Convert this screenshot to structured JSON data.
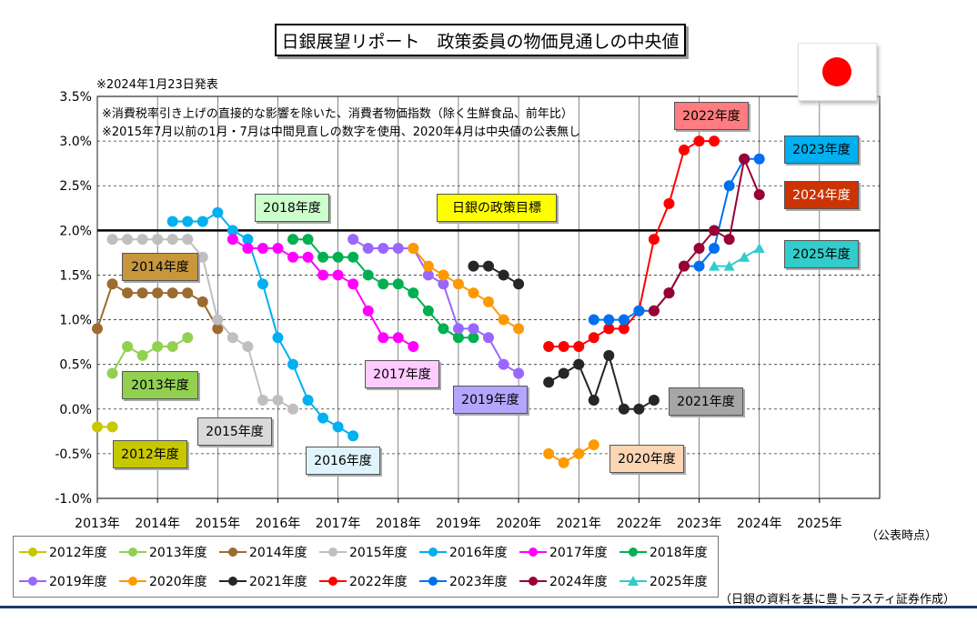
{
  "title": "日銀展望リポート　政策委員の物価見通しの中央値",
  "note_date": "※2024年1月23日発表",
  "note_1": "※消費税率引き上げの直接的な影響を除いた、消費者物価指数（除く生鮮食品、前年比）",
  "note_2": "※2015年7月以前の1月・7月は中間見直しの数字を使用、2020年4月は中央値の公表無し",
  "target_label": "日銀の政策目標",
  "x_unit": "（公表時点）",
  "credit": "（日銀の資料を基に豊トラスティ証券作成）",
  "flag_icon": "japan-flag-icon",
  "chart_data": {
    "type": "line",
    "x_axis": {
      "label": "",
      "ticks": [
        "2013年",
        "2014年",
        "2015年",
        "2016年",
        "2017年",
        "2018年",
        "2019年",
        "2020年",
        "2021年",
        "2022年",
        "2023年",
        "2024年",
        "2025年"
      ],
      "range": [
        "2013-01",
        "2026-01"
      ]
    },
    "y_axis": {
      "label": "",
      "ticks": [
        "3.5%",
        "3.0%",
        "2.5%",
        "2.0%",
        "1.5%",
        "1.0%",
        "0.5%",
        "0.0%",
        "-0.5%",
        "-1.0%"
      ],
      "ylim": [
        -1.0,
        3.5
      ]
    },
    "grid": "horizontal-dashed",
    "reference_line": {
      "y": 2.0
    },
    "series": [
      {
        "name": "2012年度",
        "color": "#c8c800",
        "marker": "circle",
        "points": [
          [
            "2013-01",
            -0.2
          ],
          [
            "2013-04",
            -0.2
          ]
        ]
      },
      {
        "name": "2013年度",
        "color": "#92d050",
        "marker": "circle",
        "points": [
          [
            "2013-04",
            0.4
          ],
          [
            "2013-07",
            0.7
          ],
          [
            "2013-10",
            0.6
          ],
          [
            "2014-01",
            0.7
          ],
          [
            "2014-04",
            0.7
          ],
          [
            "2014-07",
            0.8
          ]
        ]
      },
      {
        "name": "2014年度",
        "color": "#9c6b30",
        "marker": "circle",
        "points": [
          [
            "2013-01",
            0.9
          ],
          [
            "2013-04",
            1.4
          ],
          [
            "2013-07",
            1.3
          ],
          [
            "2013-10",
            1.3
          ],
          [
            "2014-01",
            1.3
          ],
          [
            "2014-04",
            1.3
          ],
          [
            "2014-07",
            1.3
          ],
          [
            "2014-10",
            1.2
          ],
          [
            "2015-01",
            0.9
          ]
        ]
      },
      {
        "name": "2015年度",
        "color": "#bfbfbf",
        "marker": "circle",
        "points": [
          [
            "2013-04",
            1.9
          ],
          [
            "2013-07",
            1.9
          ],
          [
            "2013-10",
            1.9
          ],
          [
            "2014-01",
            1.9
          ],
          [
            "2014-04",
            1.9
          ],
          [
            "2014-07",
            1.9
          ],
          [
            "2014-10",
            1.7
          ],
          [
            "2015-01",
            1.0
          ],
          [
            "2015-04",
            0.8
          ],
          [
            "2015-07",
            0.7
          ],
          [
            "2015-10",
            0.1
          ],
          [
            "2016-01",
            0.1
          ],
          [
            "2016-04",
            0.0
          ]
        ]
      },
      {
        "name": "2016年度",
        "color": "#00b0f0",
        "marker": "circle",
        "points": [
          [
            "2014-04",
            2.1
          ],
          [
            "2014-07",
            2.1
          ],
          [
            "2014-10",
            2.1
          ],
          [
            "2015-01",
            2.2
          ],
          [
            "2015-04",
            2.0
          ],
          [
            "2015-07",
            1.9
          ],
          [
            "2015-10",
            1.4
          ],
          [
            "2016-01",
            0.8
          ],
          [
            "2016-04",
            0.5
          ],
          [
            "2016-07",
            0.1
          ],
          [
            "2016-10",
            -0.1
          ],
          [
            "2017-01",
            -0.2
          ],
          [
            "2017-04",
            -0.3
          ]
        ]
      },
      {
        "name": "2017年度",
        "color": "#ff00ff",
        "marker": "circle",
        "points": [
          [
            "2015-04",
            1.9
          ],
          [
            "2015-07",
            1.8
          ],
          [
            "2015-10",
            1.8
          ],
          [
            "2016-01",
            1.8
          ],
          [
            "2016-04",
            1.7
          ],
          [
            "2016-07",
            1.7
          ],
          [
            "2016-10",
            1.5
          ],
          [
            "2017-01",
            1.5
          ],
          [
            "2017-04",
            1.4
          ],
          [
            "2017-07",
            1.1
          ],
          [
            "2017-10",
            0.8
          ],
          [
            "2018-01",
            0.8
          ],
          [
            "2018-04",
            0.7
          ]
        ]
      },
      {
        "name": "2018年度",
        "color": "#00b050",
        "marker": "circle",
        "points": [
          [
            "2016-04",
            1.9
          ],
          [
            "2016-07",
            1.9
          ],
          [
            "2016-10",
            1.7
          ],
          [
            "2017-01",
            1.7
          ],
          [
            "2017-04",
            1.7
          ],
          [
            "2017-07",
            1.5
          ],
          [
            "2017-10",
            1.4
          ],
          [
            "2018-01",
            1.4
          ],
          [
            "2018-04",
            1.3
          ],
          [
            "2018-07",
            1.1
          ],
          [
            "2018-10",
            0.9
          ],
          [
            "2019-01",
            0.8
          ],
          [
            "2019-04",
            0.8
          ]
        ]
      },
      {
        "name": "2019年度",
        "color": "#9966ff",
        "marker": "circle",
        "points": [
          [
            "2017-04",
            1.9
          ],
          [
            "2017-07",
            1.8
          ],
          [
            "2017-10",
            1.8
          ],
          [
            "2018-01",
            1.8
          ],
          [
            "2018-04",
            1.8
          ],
          [
            "2018-07",
            1.5
          ],
          [
            "2018-10",
            1.4
          ],
          [
            "2019-01",
            0.9
          ],
          [
            "2019-04",
            0.9
          ],
          [
            "2019-07",
            0.8
          ],
          [
            "2019-10",
            0.5
          ],
          [
            "2020-01",
            0.4
          ]
        ]
      },
      {
        "name": "2020年度",
        "color": "#ff9900",
        "marker": "circle",
        "points": [
          [
            "2018-04",
            1.8
          ],
          [
            "2018-07",
            1.6
          ],
          [
            "2018-10",
            1.5
          ],
          [
            "2019-01",
            1.4
          ],
          [
            "2019-04",
            1.3
          ],
          [
            "2019-07",
            1.2
          ],
          [
            "2019-10",
            1.0
          ],
          [
            "2020-01",
            0.9
          ],
          null,
          [
            "2020-07",
            -0.5
          ],
          [
            "2020-10",
            -0.6
          ],
          [
            "2021-01",
            -0.5
          ],
          [
            "2021-04",
            -0.4
          ]
        ]
      },
      {
        "name": "2021年度",
        "color": "#262626",
        "marker": "circle",
        "points": [
          [
            "2019-04",
            1.6
          ],
          [
            "2019-07",
            1.6
          ],
          [
            "2019-10",
            1.5
          ],
          [
            "2020-01",
            1.4
          ],
          null,
          [
            "2020-07",
            0.3
          ],
          [
            "2020-10",
            0.4
          ],
          [
            "2021-01",
            0.5
          ],
          [
            "2021-04",
            0.1
          ],
          [
            "2021-07",
            0.6
          ],
          [
            "2021-10",
            0.0
          ],
          [
            "2022-01",
            0.0
          ],
          [
            "2022-04",
            0.1
          ]
        ]
      },
      {
        "name": "2022年度",
        "color": "#ff0000",
        "marker": "circle",
        "points": [
          [
            "2020-07",
            0.7
          ],
          [
            "2020-10",
            0.7
          ],
          [
            "2021-01",
            0.7
          ],
          [
            "2021-04",
            0.8
          ],
          [
            "2021-07",
            0.9
          ],
          [
            "2021-10",
            0.9
          ],
          [
            "2022-01",
            1.1
          ],
          [
            "2022-04",
            1.9
          ],
          [
            "2022-07",
            2.3
          ],
          [
            "2022-10",
            2.9
          ],
          [
            "2023-01",
            3.0
          ],
          [
            "2023-04",
            3.0
          ]
        ]
      },
      {
        "name": "2023年度",
        "color": "#0070f0",
        "marker": "circle",
        "points": [
          [
            "2021-04",
            1.0
          ],
          [
            "2021-07",
            1.0
          ],
          [
            "2021-10",
            1.0
          ],
          [
            "2022-01",
            1.1
          ],
          [
            "2022-04",
            1.1
          ],
          [
            "2022-07",
            1.3
          ],
          [
            "2022-10",
            1.6
          ],
          [
            "2023-01",
            1.6
          ],
          [
            "2023-04",
            1.8
          ],
          [
            "2023-07",
            2.5
          ],
          [
            "2023-10",
            2.8
          ],
          [
            "2024-01",
            2.8
          ]
        ]
      },
      {
        "name": "2024年度",
        "color": "#990033",
        "marker": "circle",
        "points": [
          [
            "2022-04",
            1.1
          ],
          [
            "2022-07",
            1.3
          ],
          [
            "2022-10",
            1.6
          ],
          [
            "2023-01",
            1.8
          ],
          [
            "2023-04",
            2.0
          ],
          [
            "2023-07",
            1.9
          ],
          [
            "2023-10",
            2.8
          ],
          [
            "2024-01",
            2.4
          ]
        ]
      },
      {
        "name": "2025年度",
        "color": "#33cccc",
        "marker": "triangle",
        "points": [
          [
            "2023-04",
            1.6
          ],
          [
            "2023-07",
            1.6
          ],
          [
            "2023-10",
            1.7
          ],
          [
            "2024-01",
            1.8
          ]
        ]
      }
    ],
    "labels": [
      {
        "series": "2012年度",
        "text": "2012年度",
        "bg": "#c8c800"
      },
      {
        "series": "2013年度",
        "text": "2013年度",
        "bg": "#92d050"
      },
      {
        "series": "2014年度",
        "text": "2014年度",
        "bg": "#c8963c"
      },
      {
        "series": "2015年度",
        "text": "2015年度",
        "bg": "#d9d9d9"
      },
      {
        "series": "2016年度",
        "text": "2016年度",
        "bg": "#dff4fc"
      },
      {
        "series": "2017年度",
        "text": "2017年度",
        "bg": "#ffccff"
      },
      {
        "series": "2018年度",
        "text": "2018年度",
        "bg": "#ccffcc"
      },
      {
        "series": "2019年度",
        "text": "2019年度",
        "bg": "#b3a6ff"
      },
      {
        "series": "2020年度",
        "text": "2020年度",
        "bg": "#fcd5b4"
      },
      {
        "series": "2021年度",
        "text": "2021年度",
        "bg": "#a6a6a6"
      },
      {
        "series": "2022年度",
        "text": "2022年度",
        "bg": "#ff7c80"
      },
      {
        "series": "2023年度",
        "text": "2023年度",
        "bg": "#00b0f0"
      },
      {
        "series": "2024年度",
        "text": "2024年度",
        "bg": "#cc3300"
      },
      {
        "series": "2025年度",
        "text": "2025年度",
        "bg": "#33cccc"
      }
    ],
    "legend_placement": "bottom"
  }
}
